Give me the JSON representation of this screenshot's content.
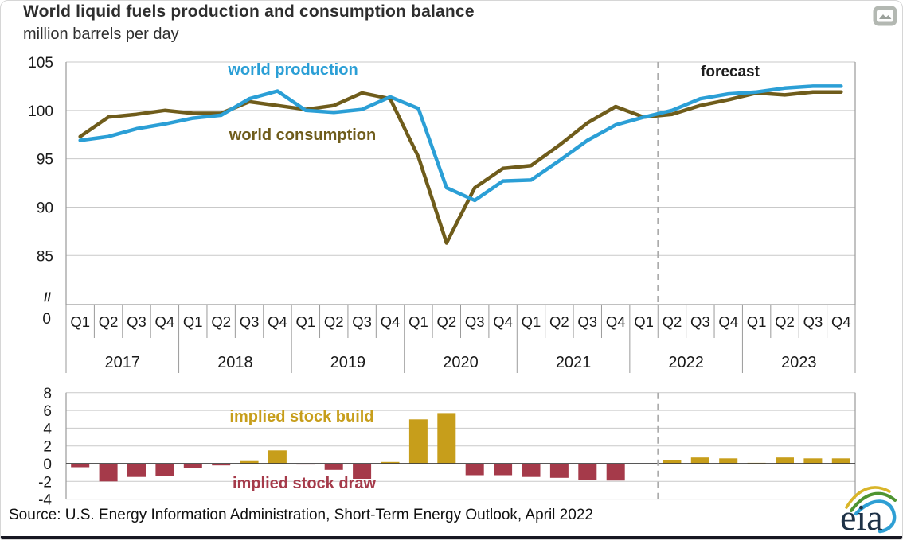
{
  "header": {
    "title": "World liquid fuels production and consumption balance",
    "subtitle": "million barrels per day"
  },
  "footer": {
    "source": "Source: U.S. Energy Information Administration, Short-Term Energy Outlook, April 2022",
    "logo_text": "eia"
  },
  "icons": {
    "top_right": "image-icon",
    "logo_swoosh": "eia-swoosh"
  },
  "colors": {
    "production": "#2b9fd6",
    "consumption": "#6f5c1b",
    "build": "#c79e1b",
    "draw": "#a53a4a",
    "grid": "#c9c9c9",
    "axis": "#9a9a9a",
    "zero": "#3f3f3f",
    "dashed": "#ababab",
    "tick_text": "#1a1a1a",
    "title_text": "#2e2e2e",
    "logo_text": "#1e3247",
    "bottom_bar": "#171722",
    "icon_bg": "#b3b8b2"
  },
  "chart_data": [
    {
      "type": "line",
      "title": "World liquid fuels production and consumption balance",
      "ylabel": "million barrels per day",
      "grid": true,
      "ylim": [
        85,
        105
      ],
      "yticks": [
        105,
        100,
        95,
        90,
        85
      ],
      "axis_break_label": "//",
      "axis_zero_label": "0",
      "forecast_label": "forecast",
      "forecast_boundary_after_index": 20,
      "quarter_labels": [
        "Q1",
        "Q2",
        "Q3",
        "Q4"
      ],
      "years": [
        "2017",
        "2018",
        "2019",
        "2020",
        "2021",
        "2022",
        "2023"
      ],
      "categories": [
        "2017 Q1",
        "2017 Q2",
        "2017 Q3",
        "2017 Q4",
        "2018 Q1",
        "2018 Q2",
        "2018 Q3",
        "2018 Q4",
        "2019 Q1",
        "2019 Q2",
        "2019 Q3",
        "2019 Q4",
        "2020 Q1",
        "2020 Q2",
        "2020 Q3",
        "2020 Q4",
        "2021 Q1",
        "2021 Q2",
        "2021 Q3",
        "2021 Q4",
        "2022 Q1",
        "2022 Q2",
        "2022 Q3",
        "2022 Q4",
        "2023 Q1",
        "2023 Q2",
        "2023 Q3",
        "2023 Q4"
      ],
      "series": [
        {
          "name": "world production",
          "color": "#2b9fd6",
          "values": [
            96.9,
            97.3,
            98.1,
            98.6,
            99.2,
            99.5,
            101.2,
            102.0,
            100.0,
            99.8,
            100.1,
            101.4,
            100.2,
            92.0,
            90.7,
            92.7,
            92.8,
            94.8,
            96.9,
            98.5,
            99.3,
            100.0,
            101.2,
            101.7,
            101.9,
            102.3,
            102.5,
            102.5
          ]
        },
        {
          "name": "world consumption",
          "color": "#6f5c1b",
          "values": [
            97.3,
            99.3,
            99.6,
            100.0,
            99.7,
            99.7,
            100.9,
            100.5,
            100.1,
            100.5,
            101.8,
            101.2,
            95.2,
            86.3,
            92.0,
            94.0,
            94.3,
            96.4,
            98.7,
            100.4,
            99.3,
            99.6,
            100.5,
            101.1,
            101.8,
            101.6,
            101.9,
            101.9
          ]
        }
      ]
    },
    {
      "type": "bar",
      "title": "implied stock build / implied stock draw",
      "grid": true,
      "ylim": [
        -4,
        8
      ],
      "yticks": [
        8,
        6,
        4,
        2,
        0,
        -2,
        -4
      ],
      "positive_label": "implied stock build",
      "negative_label": "implied stock draw",
      "positive_color": "#c79e1b",
      "negative_color": "#a53a4a",
      "categories": [
        "2017 Q1",
        "2017 Q2",
        "2017 Q3",
        "2017 Q4",
        "2018 Q1",
        "2018 Q2",
        "2018 Q3",
        "2018 Q4",
        "2019 Q1",
        "2019 Q2",
        "2019 Q3",
        "2019 Q4",
        "2020 Q1",
        "2020 Q2",
        "2020 Q3",
        "2020 Q4",
        "2021 Q1",
        "2021 Q2",
        "2021 Q3",
        "2021 Q4",
        "2022 Q1",
        "2022 Q2",
        "2022 Q3",
        "2022 Q4",
        "2023 Q1",
        "2023 Q2",
        "2023 Q3",
        "2023 Q4"
      ],
      "values": [
        -0.4,
        -2.0,
        -1.5,
        -1.4,
        -0.5,
        -0.2,
        0.3,
        1.5,
        -0.1,
        -0.7,
        -1.7,
        0.2,
        5.0,
        5.7,
        -1.3,
        -1.3,
        -1.5,
        -1.6,
        -1.8,
        -1.9,
        0.0,
        0.4,
        0.7,
        0.6,
        0.1,
        0.7,
        0.6,
        0.6
      ]
    }
  ]
}
